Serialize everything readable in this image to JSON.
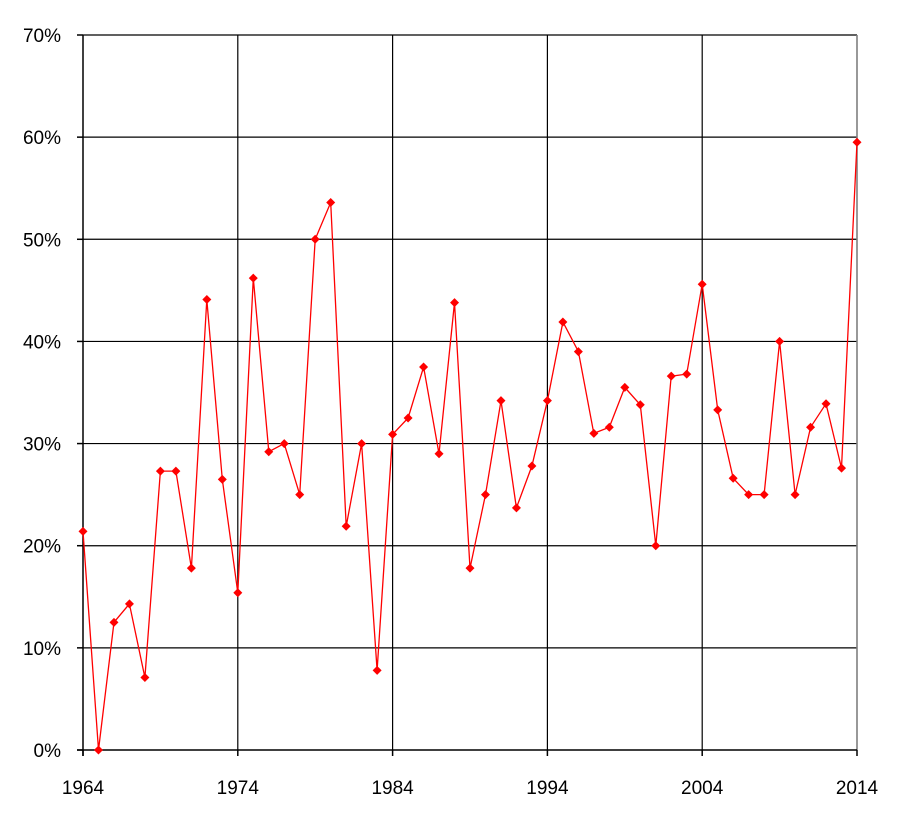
{
  "chart_data": {
    "type": "line",
    "title": "",
    "xlabel": "",
    "ylabel": "",
    "xlim": [
      1964,
      2014
    ],
    "ylim": [
      0,
      70
    ],
    "x_ticks": [
      1964,
      1974,
      1984,
      1994,
      2004,
      2014
    ],
    "y_ticks": [
      0,
      10,
      20,
      30,
      40,
      50,
      60,
      70
    ],
    "x_tick_labels": [
      "1964",
      "1974",
      "1984",
      "1994",
      "2004",
      "2014"
    ],
    "y_tick_labels": [
      "0%",
      "10%",
      "20%",
      "30%",
      "40%",
      "50%",
      "60%",
      "70%"
    ],
    "grid": true,
    "legend": "none",
    "series": [
      {
        "color": "#ff0000",
        "x": [
          1964,
          1965,
          1966,
          1967,
          1968,
          1969,
          1970,
          1971,
          1972,
          1973,
          1974,
          1975,
          1976,
          1977,
          1978,
          1979,
          1980,
          1981,
          1982,
          1983,
          1984,
          1985,
          1986,
          1987,
          1988,
          1989,
          1990,
          1991,
          1992,
          1993,
          1994,
          1995,
          1996,
          1997,
          1998,
          1999,
          2000,
          2001,
          2002,
          2003,
          2004,
          2005,
          2006,
          2007,
          2008,
          2009,
          2010,
          2011,
          2012,
          2013,
          2014
        ],
        "values": [
          21.4,
          0.0,
          12.5,
          14.3,
          7.1,
          27.3,
          27.3,
          17.8,
          44.1,
          26.5,
          15.4,
          46.2,
          29.2,
          30.0,
          25.0,
          50.0,
          53.6,
          21.9,
          30.0,
          7.8,
          30.9,
          32.5,
          37.5,
          29.0,
          43.8,
          17.8,
          25.0,
          34.2,
          23.7,
          27.8,
          34.2,
          41.9,
          39.0,
          31.0,
          31.6,
          35.5,
          33.8,
          20.0,
          36.6,
          36.8,
          45.6,
          33.3,
          26.6,
          25.0,
          25.0,
          40.0,
          25.0,
          31.6,
          33.9,
          27.6,
          59.5
        ]
      }
    ]
  }
}
